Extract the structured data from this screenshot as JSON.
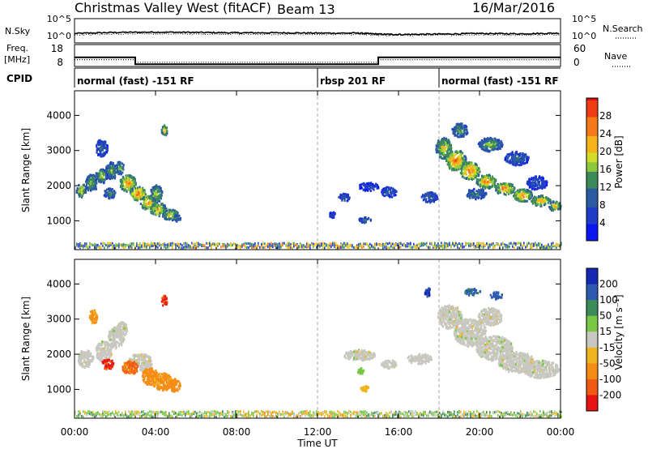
{
  "header": {
    "title": "Christmas Valley West (fitACF)",
    "beam": "Beam 13",
    "date": "16/Mar/2016"
  },
  "colors": {
    "background_scatter_gray": "#c8c8c0",
    "panel_frame": "#000000"
  },
  "chart_data": [
    {
      "type": "line",
      "panel": "noise",
      "left_label": "N.Sky",
      "right_label": "N.Search",
      "left_ticks": [
        "10^5",
        "10^0"
      ],
      "right_ticks": [
        "10^5",
        "10^0"
      ],
      "x": [
        0,
        2,
        4,
        6,
        8,
        10,
        12,
        14,
        15,
        16,
        18,
        20,
        22,
        24
      ],
      "series": [
        {
          "name": "N.Sky",
          "style": "solid",
          "values": [
            1.6,
            1.9,
            2.0,
            1.9,
            1.8,
            1.8,
            1.7,
            1.7,
            1.4,
            1.3,
            1.4,
            1.6,
            1.5,
            1.7
          ]
        },
        {
          "name": "N.Search",
          "style": "dotted",
          "values": [
            1.2,
            1.4,
            1.5,
            1.4,
            1.4,
            1.3,
            1.3,
            1.3,
            1.1,
            1.0,
            1.1,
            1.2,
            1.1,
            1.3
          ]
        }
      ]
    },
    {
      "type": "line",
      "panel": "frequency",
      "left_label": [
        "Freq.",
        "[MHz]"
      ],
      "right_label": "Nave",
      "left_ticks": [
        "18",
        "8"
      ],
      "right_ticks": [
        "60",
        "0"
      ],
      "freq": {
        "x": [
          0,
          3,
          3,
          15,
          15,
          24
        ],
        "values": [
          14,
          14,
          9,
          9,
          14,
          14
        ]
      },
      "nave": {
        "x": [
          0,
          3,
          3,
          15,
          15,
          24
        ],
        "values": [
          26,
          26,
          15,
          15,
          26,
          26
        ]
      }
    },
    {
      "type": "table",
      "panel": "cpid",
      "label": "CPID",
      "segments": [
        {
          "start": 0,
          "end": 12,
          "text": "normal (fast) -151 RF"
        },
        {
          "start": 12,
          "end": 18,
          "text": "rbsp 201 RF"
        },
        {
          "start": 18,
          "end": 24,
          "text": "normal (fast) -151 RF"
        }
      ]
    },
    {
      "type": "heatmap",
      "panel": "power",
      "ylabel": "Slant Range [km]",
      "yticks": [
        1000,
        2000,
        3000,
        4000
      ],
      "ylim": [
        180,
        4700
      ],
      "colorbar": {
        "label": "Power [dB]",
        "ticks": [
          4,
          8,
          12,
          16,
          20,
          24,
          28
        ],
        "range": [
          0,
          32
        ]
      },
      "blobs": [
        {
          "t": 0.3,
          "r": 1900,
          "dt": 0.25,
          "dr": 200,
          "v": 22
        },
        {
          "t": 0.8,
          "r": 2100,
          "dt": 0.3,
          "dr": 250,
          "v": 18
        },
        {
          "t": 1.3,
          "r": 2300,
          "dt": 0.3,
          "dr": 200,
          "v": 20
        },
        {
          "t": 1.8,
          "r": 2450,
          "dt": 0.3,
          "dr": 250,
          "v": 17
        },
        {
          "t": 2.2,
          "r": 2550,
          "dt": 0.2,
          "dr": 200,
          "v": 18
        },
        {
          "t": 1.3,
          "r": 3100,
          "dt": 0.3,
          "dr": 250,
          "v": 12
        },
        {
          "t": 1.7,
          "r": 1800,
          "dt": 0.3,
          "dr": 150,
          "v": 16
        },
        {
          "t": 2.6,
          "r": 2100,
          "dt": 0.4,
          "dr": 250,
          "v": 26
        },
        {
          "t": 3.1,
          "r": 1800,
          "dt": 0.4,
          "dr": 200,
          "v": 28
        },
        {
          "t": 3.6,
          "r": 1550,
          "dt": 0.4,
          "dr": 200,
          "v": 26
        },
        {
          "t": 4.1,
          "r": 1350,
          "dt": 0.4,
          "dr": 200,
          "v": 24
        },
        {
          "t": 4.7,
          "r": 1200,
          "dt": 0.4,
          "dr": 150,
          "v": 22
        },
        {
          "t": 5.0,
          "r": 1100,
          "dt": 0.2,
          "dr": 100,
          "v": 16
        },
        {
          "t": 4.0,
          "r": 1800,
          "dt": 0.3,
          "dr": 250,
          "v": 20
        },
        {
          "t": 4.4,
          "r": 3600,
          "dt": 0.15,
          "dr": 150,
          "v": 24
        },
        {
          "t": 13.3,
          "r": 1700,
          "dt": 0.3,
          "dr": 120,
          "v": 10
        },
        {
          "t": 14.5,
          "r": 2000,
          "dt": 0.5,
          "dr": 120,
          "v": 8
        },
        {
          "t": 15.5,
          "r": 1850,
          "dt": 0.4,
          "dr": 150,
          "v": 10
        },
        {
          "t": 17.5,
          "r": 1700,
          "dt": 0.4,
          "dr": 150,
          "v": 12
        },
        {
          "t": 12.7,
          "r": 1200,
          "dt": 0.15,
          "dr": 80,
          "v": 10
        },
        {
          "t": 14.3,
          "r": 1050,
          "dt": 0.3,
          "dr": 80,
          "v": 12
        },
        {
          "t": 18.2,
          "r": 3100,
          "dt": 0.4,
          "dr": 300,
          "v": 22
        },
        {
          "t": 18.8,
          "r": 2750,
          "dt": 0.5,
          "dr": 300,
          "v": 28
        },
        {
          "t": 19.5,
          "r": 2450,
          "dt": 0.5,
          "dr": 250,
          "v": 28
        },
        {
          "t": 20.3,
          "r": 2150,
          "dt": 0.5,
          "dr": 200,
          "v": 26
        },
        {
          "t": 21.2,
          "r": 1950,
          "dt": 0.5,
          "dr": 180,
          "v": 26
        },
        {
          "t": 22.1,
          "r": 1750,
          "dt": 0.5,
          "dr": 180,
          "v": 26
        },
        {
          "t": 23.0,
          "r": 1600,
          "dt": 0.5,
          "dr": 150,
          "v": 24
        },
        {
          "t": 23.7,
          "r": 1450,
          "dt": 0.3,
          "dr": 150,
          "v": 22
        },
        {
          "t": 19.0,
          "r": 3600,
          "dt": 0.4,
          "dr": 200,
          "v": 16
        },
        {
          "t": 20.5,
          "r": 3200,
          "dt": 0.6,
          "dr": 200,
          "v": 18
        },
        {
          "t": 21.8,
          "r": 2800,
          "dt": 0.6,
          "dr": 200,
          "v": 12
        },
        {
          "t": 22.8,
          "r": 2100,
          "dt": 0.5,
          "dr": 200,
          "v": 10
        },
        {
          "t": 19.8,
          "r": 1800,
          "dt": 0.5,
          "dr": 150,
          "v": 14
        }
      ],
      "ground_band": {
        "r": 330,
        "dr": 90,
        "t_start": 0,
        "t_end": 24
      }
    },
    {
      "type": "heatmap",
      "panel": "velocity",
      "ylabel": "Slant Range [km]",
      "yticks": [
        1000,
        2000,
        3000,
        4000
      ],
      "ylim": [
        180,
        4700
      ],
      "xlabel": "Time UT",
      "xticks": [
        "00:00",
        "04:00",
        "08:00",
        "12:00",
        "16:00",
        "20:00",
        "00:00"
      ],
      "colorbar": {
        "label": "Velocity [m s⁻¹]",
        "ticks": [
          200,
          100,
          50,
          15,
          -15,
          -50,
          -100,
          -200
        ]
      },
      "blobs": [
        {
          "t": 0.5,
          "r": 1900,
          "dt": 0.4,
          "dr": 250,
          "v": 0
        },
        {
          "t": 1.4,
          "r": 2100,
          "dt": 0.4,
          "dr": 300,
          "v": 0
        },
        {
          "t": 2.0,
          "r": 2500,
          "dt": 0.4,
          "dr": 300,
          "v": 0
        },
        {
          "t": 2.3,
          "r": 2750,
          "dt": 0.3,
          "dr": 200,
          "v": 0
        },
        {
          "t": 3.2,
          "r": 1800,
          "dt": 0.6,
          "dr": 250,
          "v": 0
        },
        {
          "t": 1.6,
          "r": 1750,
          "dt": 0.3,
          "dr": 150,
          "v": -210
        },
        {
          "t": 2.7,
          "r": 1650,
          "dt": 0.4,
          "dr": 200,
          "v": -110
        },
        {
          "t": 3.7,
          "r": 1400,
          "dt": 0.4,
          "dr": 250,
          "v": -80
        },
        {
          "t": 4.3,
          "r": 1250,
          "dt": 0.5,
          "dr": 250,
          "v": -60
        },
        {
          "t": 4.9,
          "r": 1150,
          "dt": 0.3,
          "dr": 180,
          "v": -70
        },
        {
          "t": 4.4,
          "r": 3550,
          "dt": 0.15,
          "dr": 150,
          "v": -210
        },
        {
          "t": 0.9,
          "r": 3100,
          "dt": 0.2,
          "dr": 200,
          "v": -60
        },
        {
          "t": 18.5,
          "r": 3100,
          "dt": 0.6,
          "dr": 350,
          "v": 0
        },
        {
          "t": 19.5,
          "r": 2650,
          "dt": 0.8,
          "dr": 400,
          "v": 0
        },
        {
          "t": 20.7,
          "r": 2200,
          "dt": 0.9,
          "dr": 350,
          "v": 0
        },
        {
          "t": 21.8,
          "r": 1800,
          "dt": 0.9,
          "dr": 300,
          "v": 0
        },
        {
          "t": 23.0,
          "r": 1600,
          "dt": 0.9,
          "dr": 250,
          "v": 0
        },
        {
          "t": 20.5,
          "r": 3100,
          "dt": 0.6,
          "dr": 250,
          "v": 0
        },
        {
          "t": 14.0,
          "r": 2000,
          "dt": 0.8,
          "dr": 150,
          "v": 0
        },
        {
          "t": 17.0,
          "r": 1900,
          "dt": 0.6,
          "dr": 150,
          "v": 0
        },
        {
          "t": 15.5,
          "r": 1750,
          "dt": 0.4,
          "dr": 120,
          "v": 0
        },
        {
          "t": 19.6,
          "r": 3800,
          "dt": 0.4,
          "dr": 100,
          "v": 120
        },
        {
          "t": 20.8,
          "r": 3700,
          "dt": 0.3,
          "dr": 100,
          "v": 150
        },
        {
          "t": 17.4,
          "r": 3800,
          "dt": 0.15,
          "dr": 150,
          "v": 210
        },
        {
          "t": 14.3,
          "r": 1050,
          "dt": 0.2,
          "dr": 80,
          "v": -40
        },
        {
          "t": 14.1,
          "r": 1550,
          "dt": 0.15,
          "dr": 80,
          "v": 40
        }
      ],
      "ground_band": {
        "r": 330,
        "dr": 100,
        "t_start": 0,
        "t_end": 24
      }
    }
  ]
}
